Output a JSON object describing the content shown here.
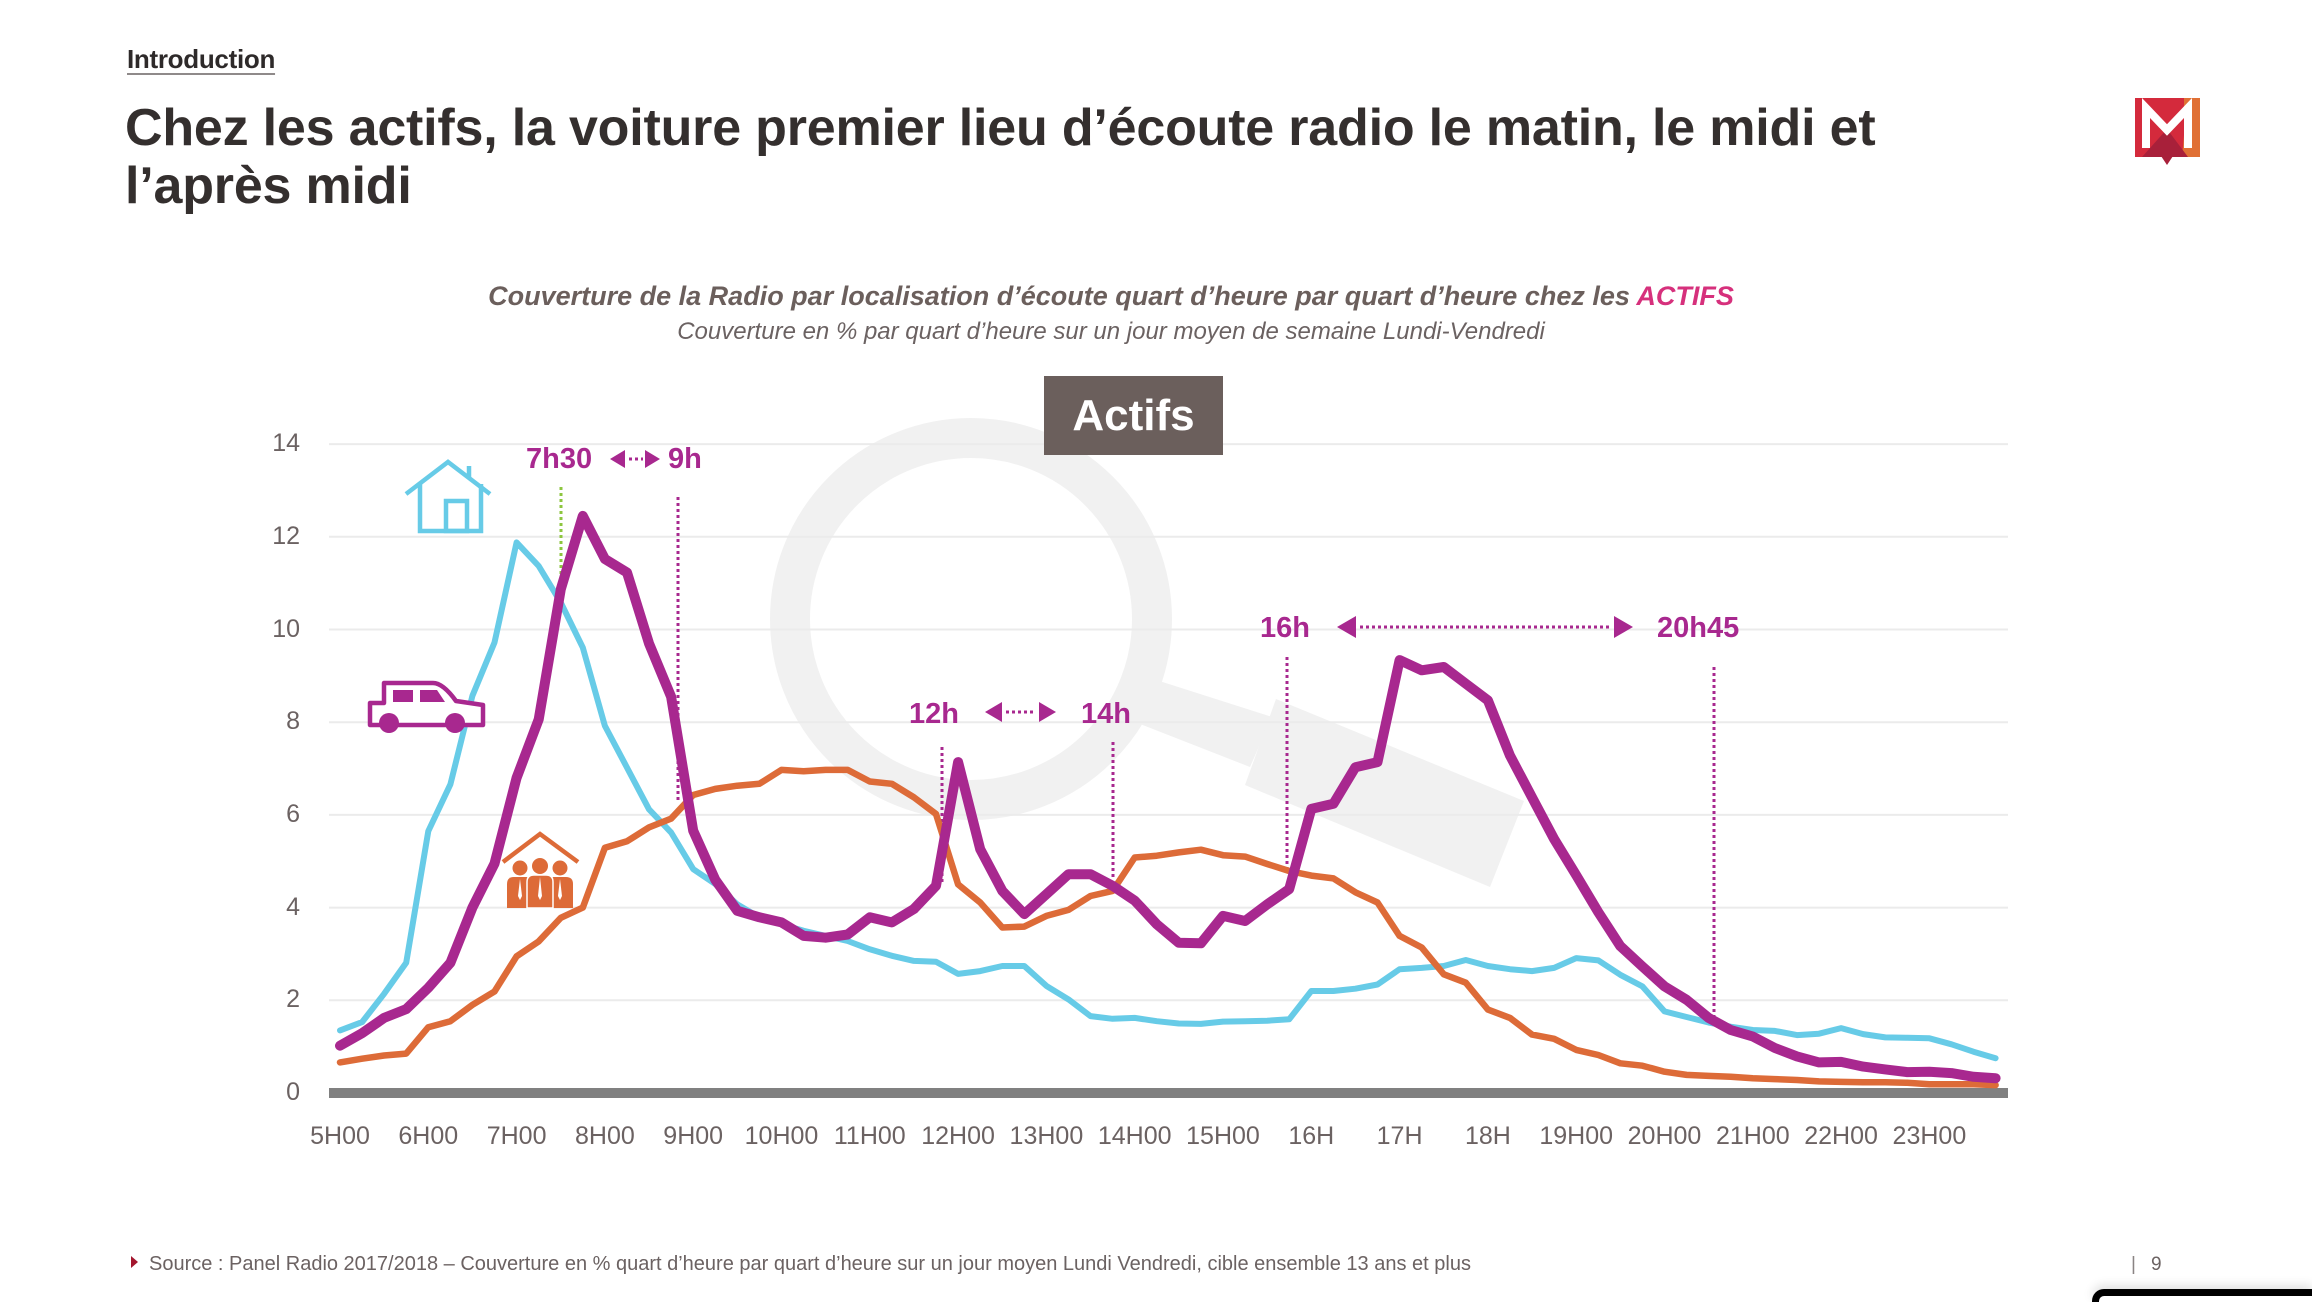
{
  "section": "Introduction",
  "title": "Chez les actifs, la voiture premier lieu d’écoute radio le matin, le midi et l’après midi",
  "logo": {
    "icon": "m-logo-icon",
    "colors": [
      "#d42a3c",
      "#e07035",
      "#a8203a"
    ]
  },
  "footer": {
    "source": "Source : Panel Radio 2017/2018 – Couverture en % quart d’heure par quart d’heure sur un jour moyen Lundi Vendredi, cible ensemble 13 ans et plus",
    "separator": "|",
    "page": "9"
  },
  "chart_data": {
    "type": "line",
    "title": {
      "text": "Couverture de la Radio par localisation d’écoute quart d’heure par quart d’heure chez les ",
      "highlight": "ACTIFS"
    },
    "subtitle": "Couverture en % par quart d’heure sur un jour moyen de semaine Lundi-Vendredi",
    "panel_label": "Actifs",
    "xlabel": "",
    "ylabel": "",
    "ylim": [
      0,
      14
    ],
    "y_ticks": [
      0,
      2,
      4,
      6,
      8,
      10,
      12,
      14
    ],
    "grid": true,
    "x_tick_labels": [
      "5H00",
      "6H00",
      "7H00",
      "8H00",
      "9H00",
      "10H00",
      "11H00",
      "12H00",
      "13H00",
      "14H00",
      "15H00",
      "16H",
      "17H",
      "18H",
      "19H00",
      "20H00",
      "21H00",
      "22H00",
      "23H00"
    ],
    "x_hours": [
      5,
      5.25,
      5.5,
      5.75,
      6,
      6.25,
      6.5,
      6.75,
      7,
      7.25,
      7.5,
      7.75,
      8,
      8.25,
      8.5,
      8.75,
      9,
      9.25,
      9.5,
      9.75,
      10,
      10.25,
      10.5,
      10.75,
      11,
      11.25,
      11.5,
      11.75,
      12,
      12.25,
      12.5,
      12.75,
      13,
      13.25,
      13.5,
      13.75,
      14,
      14.25,
      14.5,
      14.75,
      15,
      15.25,
      15.5,
      15.75,
      16,
      16.25,
      16.5,
      16.75,
      17,
      17.25,
      17.5,
      17.75,
      18,
      18.25,
      18.5,
      18.75,
      19,
      19.25,
      19.5,
      19.75,
      20,
      20.25,
      20.5,
      20.75,
      21,
      21.25,
      21.5,
      21.75,
      22,
      22.25,
      22.5,
      22.75,
      23,
      23.25,
      23.5,
      23.75
    ],
    "series": [
      {
        "icon": "house-icon",
        "color": "#67cbe7",
        "values": [
          1.35,
          1.53,
          2.14,
          2.81,
          5.65,
          6.66,
          8.57,
          9.72,
          11.88,
          11.37,
          10.58,
          9.61,
          7.92,
          7.02,
          6.12,
          5.62,
          4.83,
          4.51,
          4.07,
          3.79,
          3.64,
          3.5,
          3.39,
          3.28,
          3.1,
          2.96,
          2.85,
          2.83,
          2.57,
          2.63,
          2.74,
          2.74,
          2.31,
          2.02,
          1.66,
          1.6,
          1.62,
          1.55,
          1.5,
          1.49,
          1.54,
          1.55,
          1.56,
          1.59,
          2.2,
          2.2,
          2.25,
          2.34,
          2.67,
          2.7,
          2.74,
          2.87,
          2.74,
          2.67,
          2.63,
          2.7,
          2.91,
          2.86,
          2.55,
          2.3,
          1.76,
          1.64,
          1.52,
          1.43,
          1.36,
          1.34,
          1.25,
          1.28,
          1.4,
          1.27,
          1.2,
          1.19,
          1.18,
          1.05,
          0.89,
          0.75
        ]
      },
      {
        "icon": "work-group-icon",
        "color": "#dd6b38",
        "values": [
          0.66,
          0.74,
          0.81,
          0.85,
          1.42,
          1.55,
          1.9,
          2.19,
          2.95,
          3.27,
          3.78,
          4.0,
          5.29,
          5.43,
          5.73,
          5.92,
          6.43,
          6.56,
          6.63,
          6.67,
          6.97,
          6.94,
          6.97,
          6.97,
          6.72,
          6.67,
          6.38,
          6.02,
          4.5,
          4.11,
          3.57,
          3.59,
          3.82,
          3.95,
          4.25,
          4.36,
          5.08,
          5.12,
          5.19,
          5.25,
          5.13,
          5.1,
          4.94,
          4.79,
          4.69,
          4.63,
          4.33,
          4.11,
          3.39,
          3.14,
          2.56,
          2.38,
          1.8,
          1.62,
          1.26,
          1.17,
          0.93,
          0.82,
          0.64,
          0.59,
          0.46,
          0.39,
          0.37,
          0.35,
          0.32,
          0.3,
          0.28,
          0.25,
          0.24,
          0.23,
          0.23,
          0.22,
          0.19,
          0.19,
          0.19,
          0.17
        ]
      },
      {
        "icon": "car-icon",
        "color": "#a8288f",
        "values": [
          1.02,
          1.29,
          1.62,
          1.81,
          2.27,
          2.81,
          4.0,
          4.95,
          6.8,
          8.06,
          10.87,
          12.45,
          11.52,
          11.23,
          9.7,
          8.55,
          5.66,
          4.6,
          3.93,
          3.79,
          3.68,
          3.39,
          3.35,
          3.42,
          3.79,
          3.68,
          3.97,
          4.47,
          7.14,
          5.26,
          4.36,
          3.86,
          4.29,
          4.72,
          4.72,
          4.47,
          4.15,
          3.64,
          3.24,
          3.23,
          3.82,
          3.71,
          4.07,
          4.4,
          6.13,
          6.24,
          7.03,
          7.14,
          9.34,
          9.12,
          9.19,
          8.83,
          8.47,
          7.28,
          6.38,
          5.48,
          4.7,
          3.9,
          3.17,
          2.73,
          2.3,
          2.01,
          1.62,
          1.36,
          1.22,
          0.97,
          0.79,
          0.66,
          0.67,
          0.57,
          0.51,
          0.45,
          0.46,
          0.43,
          0.35,
          0.32
        ]
      }
    ],
    "annotations": {
      "morning": {
        "start": "7h30",
        "end": "9h"
      },
      "midday": {
        "start": "12h",
        "end": "14h"
      },
      "evening": {
        "start": "16h",
        "end": "20h45"
      }
    },
    "colors": {
      "annotation": "#a8288f",
      "marker_7h30": "#8dc63f",
      "highlight": "#d6307c",
      "axis": "#808080",
      "grid": "#ebebeb"
    }
  }
}
